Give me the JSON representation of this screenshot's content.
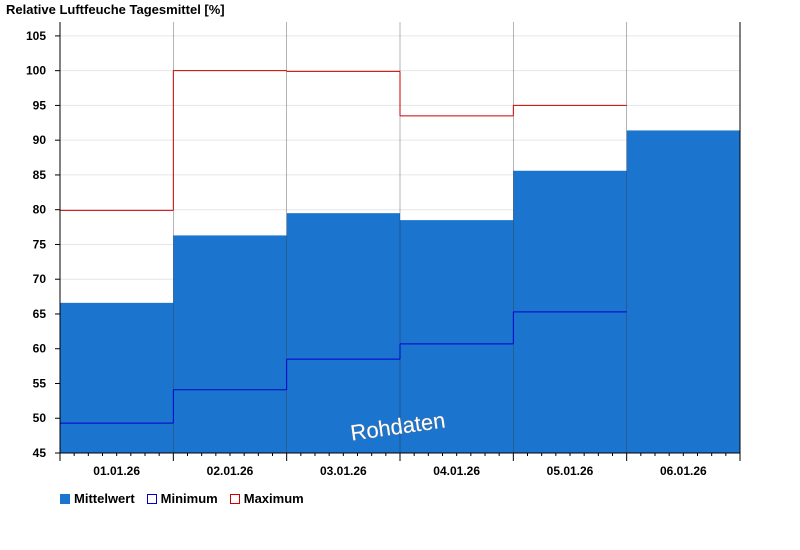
{
  "chart_data": {
    "type": "bar",
    "title": "Relative Luftfeuche Tagesmittel [%]",
    "categories": [
      "01.01.26",
      "02.01.26",
      "03.01.26",
      "04.01.26",
      "05.01.26",
      "06.01.26"
    ],
    "series": [
      {
        "name": "Mittelwert",
        "style": "filled-bar",
        "color": "#1b75cf",
        "values": [
          66.6,
          76.3,
          79.5,
          78.5,
          85.6,
          91.4
        ]
      },
      {
        "name": "Minimum",
        "style": "step-line",
        "color": "#0000cc",
        "values": [
          49.3,
          54.1,
          58.5,
          60.7,
          65.3,
          null
        ]
      },
      {
        "name": "Maximum",
        "style": "step-line",
        "color": "#cc0000",
        "values": [
          79.9,
          100.0,
          99.9,
          93.5,
          95.0,
          null
        ]
      }
    ],
    "ylim": [
      45,
      107
    ],
    "yticks": [
      45,
      50,
      55,
      60,
      65,
      70,
      75,
      80,
      85,
      90,
      95,
      100,
      105
    ],
    "grid": true,
    "legend_position": "bottom-left",
    "annotation": "Rohdaten"
  }
}
